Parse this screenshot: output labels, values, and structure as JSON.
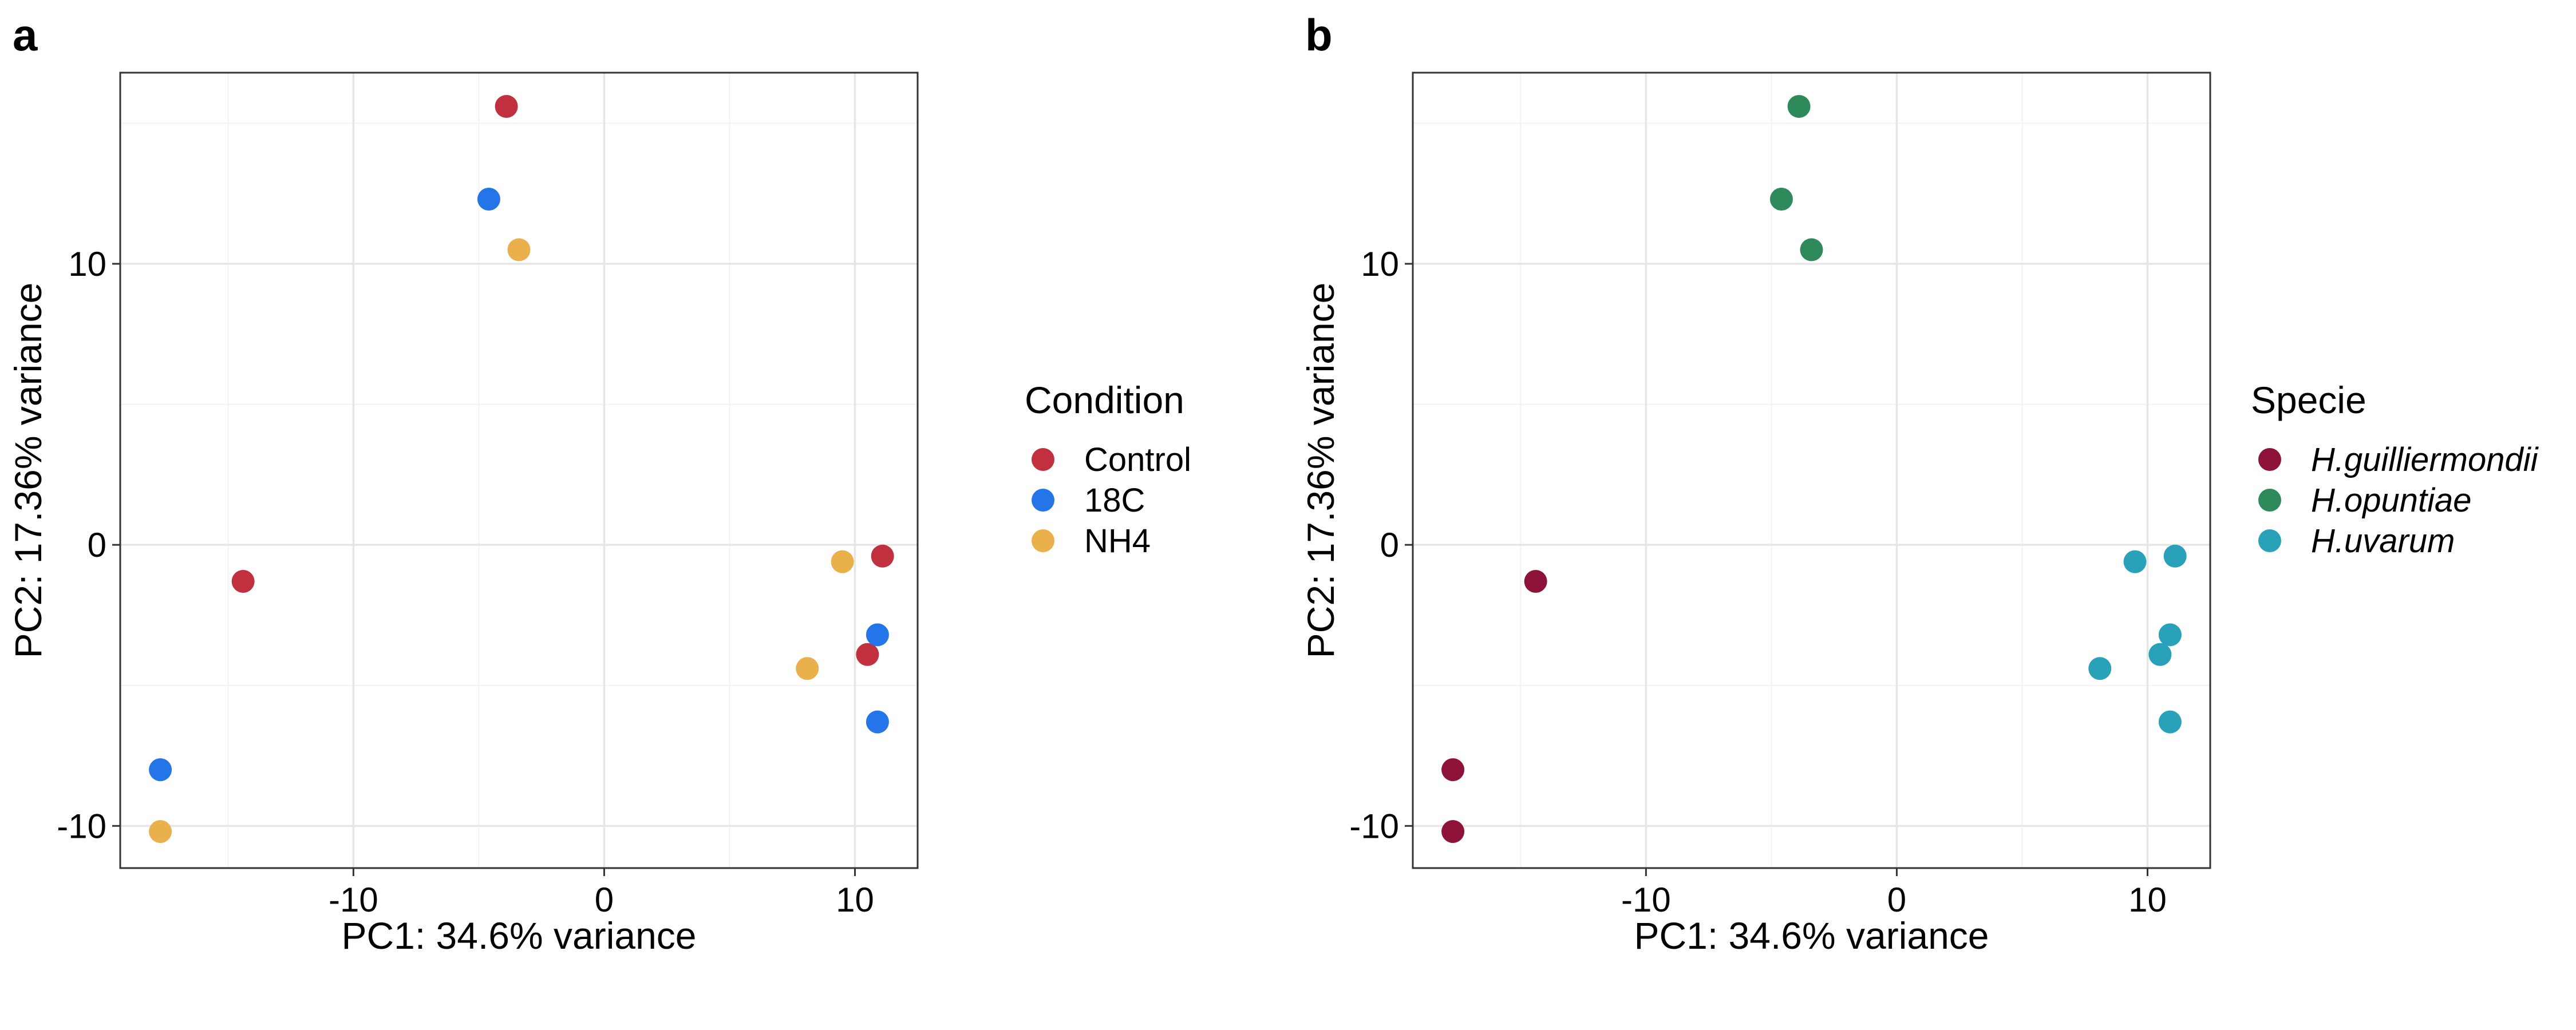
{
  "chart_data": [
    {
      "type": "scatter",
      "panel_label": "a",
      "xlabel": "PC1: 34.6% variance",
      "ylabel": "PC2: 17.36% variance",
      "xlim": [
        -19.3,
        12.5
      ],
      "ylim": [
        -11.5,
        16.8
      ],
      "xticks": [
        -10,
        0,
        10
      ],
      "yticks": [
        -10,
        0,
        10
      ],
      "grid": true,
      "legend": {
        "title": "Condition",
        "placement": "right",
        "italic": false,
        "entries": [
          "Control",
          "18C",
          "NH4"
        ]
      },
      "series": [
        {
          "name": "Control",
          "color": "#C1303F",
          "points": [
            {
              "x": -3.9,
              "y": 15.6
            },
            {
              "x": -14.4,
              "y": -1.3
            },
            {
              "x": 11.1,
              "y": -0.4
            },
            {
              "x": 10.5,
              "y": -3.9
            }
          ]
        },
        {
          "name": "18C",
          "color": "#2375E8",
          "points": [
            {
              "x": -4.6,
              "y": 12.3
            },
            {
              "x": -17.7,
              "y": -8.0
            },
            {
              "x": 10.9,
              "y": -3.2
            },
            {
              "x": 10.9,
              "y": -6.3
            }
          ]
        },
        {
          "name": "NH4",
          "color": "#EAB04C",
          "points": [
            {
              "x": -3.4,
              "y": 10.5
            },
            {
              "x": -17.7,
              "y": -10.2
            },
            {
              "x": 9.5,
              "y": -0.6
            },
            {
              "x": 8.1,
              "y": -4.4
            }
          ]
        }
      ]
    },
    {
      "type": "scatter",
      "panel_label": "b",
      "xlabel": "PC1: 34.6% variance",
      "ylabel": "PC2: 17.36% variance",
      "xlim": [
        -19.3,
        12.5
      ],
      "ylim": [
        -11.5,
        16.8
      ],
      "xticks": [
        -10,
        0,
        10
      ],
      "yticks": [
        -10,
        0,
        10
      ],
      "grid": true,
      "legend": {
        "title": "Specie",
        "placement": "right",
        "italic": true,
        "entries": [
          "H.guilliermondii",
          "H.opuntiae",
          "H.uvarum"
        ]
      },
      "series": [
        {
          "name": "H.guilliermondii",
          "color": "#8E1339",
          "points": [
            {
              "x": -14.4,
              "y": -1.3
            },
            {
              "x": -17.7,
              "y": -8.0
            },
            {
              "x": -17.7,
              "y": -10.2
            }
          ]
        },
        {
          "name": "H.opuntiae",
          "color": "#2E8A5A",
          "points": [
            {
              "x": -3.9,
              "y": 15.6
            },
            {
              "x": -4.6,
              "y": 12.3
            },
            {
              "x": -3.4,
              "y": 10.5
            }
          ]
        },
        {
          "name": "H.uvarum",
          "color": "#29A1B8",
          "points": [
            {
              "x": 11.1,
              "y": -0.4
            },
            {
              "x": 9.5,
              "y": -0.6
            },
            {
              "x": 10.9,
              "y": -3.2
            },
            {
              "x": 10.5,
              "y": -3.9
            },
            {
              "x": 8.1,
              "y": -4.4
            },
            {
              "x": 10.9,
              "y": -6.3
            }
          ]
        }
      ]
    }
  ]
}
